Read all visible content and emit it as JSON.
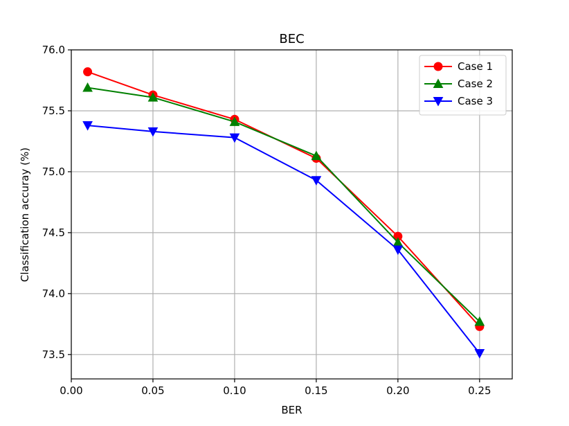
{
  "chart_data": {
    "type": "line",
    "title": "BEC",
    "xlabel": "BER",
    "ylabel": "Classification accuray (%)",
    "xlim": [
      0.0,
      0.27
    ],
    "ylim": [
      73.3,
      76.0
    ],
    "x_ticks": [
      "0.00",
      "0.05",
      "0.10",
      "0.15",
      "0.20",
      "0.25"
    ],
    "y_ticks": [
      "73.5",
      "74.0",
      "74.5",
      "75.0",
      "75.5",
      "76.0"
    ],
    "x": [
      0.01,
      0.05,
      0.1,
      0.15,
      0.2,
      0.25
    ],
    "grid": true,
    "legend_position": "top-right",
    "series": [
      {
        "name": "Case 1",
        "color": "#ff0000",
        "marker": "circle",
        "values": [
          75.82,
          75.63,
          75.43,
          75.11,
          74.47,
          73.73
        ]
      },
      {
        "name": "Case 2",
        "color": "#008000",
        "marker": "triangle-up",
        "values": [
          75.69,
          75.61,
          75.41,
          75.13,
          74.42,
          73.77
        ]
      },
      {
        "name": "Case 3",
        "color": "#0000ff",
        "marker": "triangle-down",
        "values": [
          75.38,
          75.33,
          75.28,
          74.93,
          74.36,
          73.51
        ]
      }
    ]
  }
}
